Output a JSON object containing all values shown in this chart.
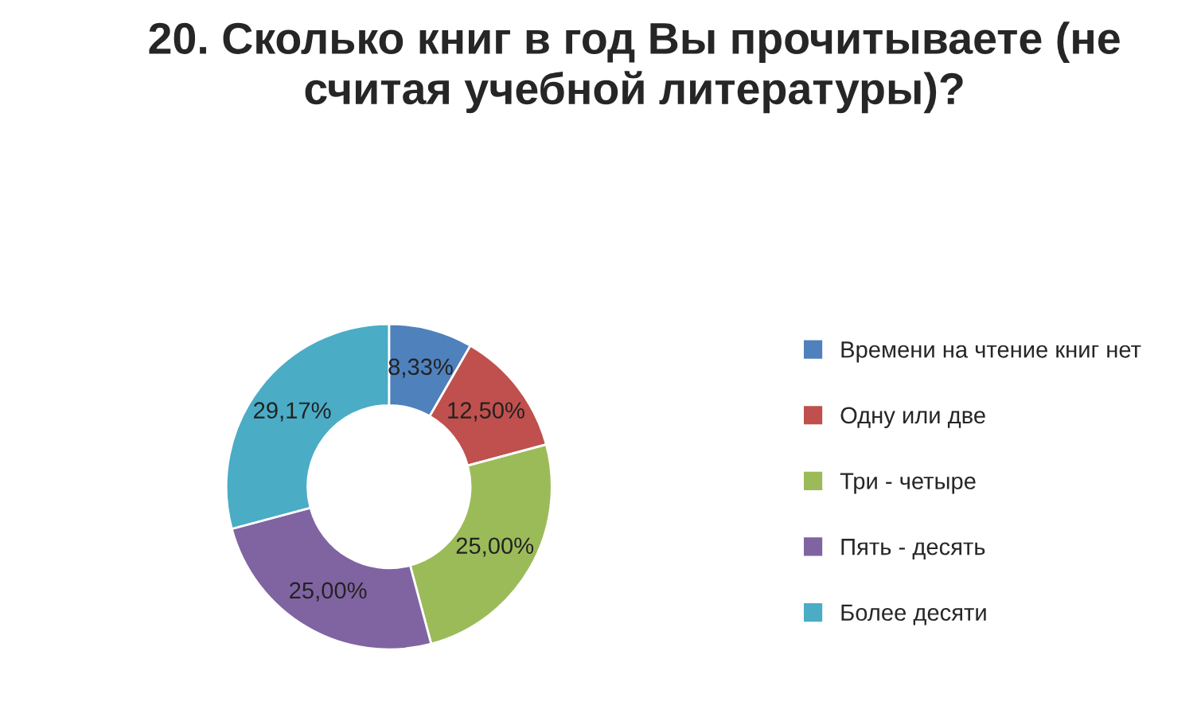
{
  "chart_data": {
    "type": "donut",
    "title": "20. Сколько книг в год Вы прочитываете (не считая учебной литературы)?",
    "categories": [
      "Времени на чтение книг нет",
      "Одну или две",
      "Три - четыре",
      "Пять - десять",
      "Более десяти"
    ],
    "values": [
      8.33,
      12.5,
      25,
      25,
      29.17
    ],
    "value_labels": [
      "8,33%",
      "12,50%",
      "25,00%",
      "25,00%",
      "29,17%"
    ],
    "colors": [
      "#4f81bd",
      "#c0504d",
      "#9bbb59",
      "#8064a2",
      "#4bacc6"
    ],
    "legend": "right"
  }
}
